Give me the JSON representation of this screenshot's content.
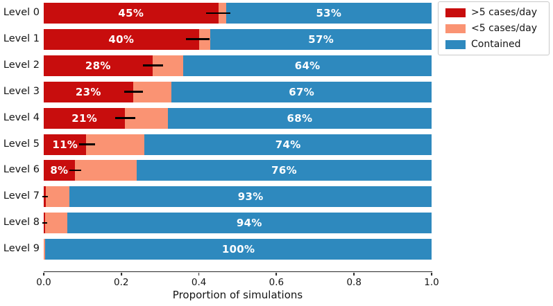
{
  "chart_data": {
    "type": "bar",
    "orientation": "horizontal",
    "stacked": true,
    "title": "",
    "xlabel": "Proportion of simulations",
    "ylabel": "",
    "xlim": [
      0.0,
      1.0
    ],
    "x_ticks": [
      "0.0",
      "0.2",
      "0.4",
      "0.6",
      "0.8",
      "1.0"
    ],
    "grid": false,
    "categories": [
      "Level 0",
      "Level 1",
      "Level 2",
      "Level 3",
      "Level 4",
      "Level 5",
      "Level 6",
      "Level 7",
      "Level 8",
      "Level 9"
    ],
    "series": [
      {
        "name": ">5 cases/day",
        "color": "#c80d0d",
        "values": [
          0.45,
          0.4,
          0.28,
          0.23,
          0.21,
          0.11,
          0.08,
          0.005,
          0.004,
          0.0
        ]
      },
      {
        "name": "<5 cases/day",
        "color": "#fa9373",
        "values": [
          0.02,
          0.03,
          0.08,
          0.1,
          0.11,
          0.15,
          0.16,
          0.062,
          0.056,
          0.004
        ]
      },
      {
        "name": "Contained",
        "color": "#2e89be",
        "values": [
          0.53,
          0.57,
          0.64,
          0.67,
          0.68,
          0.74,
          0.76,
          0.933,
          0.94,
          0.996
        ]
      }
    ],
    "segment_labels": {
      "first": [
        "45%",
        "40%",
        "28%",
        "23%",
        "21%",
        "11%",
        "8%",
        "",
        "",
        ""
      ],
      "last": [
        "53%",
        "57%",
        "64%",
        "67%",
        "68%",
        "74%",
        "76%",
        "93%",
        "94%",
        "100%"
      ]
    },
    "error_bars": [
      [
        0.418,
        0.482
      ],
      [
        0.366,
        0.428
      ],
      [
        0.255,
        0.308
      ],
      [
        0.207,
        0.256
      ],
      [
        0.185,
        0.236
      ],
      [
        0.092,
        0.133
      ],
      [
        0.066,
        0.096
      ],
      [
        -0.004,
        0.01
      ],
      [
        -0.004,
        0.009
      ],
      null
    ],
    "legend": {
      "position": "upper right",
      "entries": [
        ">5 cases/day",
        "<5 cases/day",
        "Contained"
      ]
    }
  },
  "style": {
    "bar_label_color": "#ffffff",
    "axis_color": "#262626",
    "text_color": "#141414",
    "legend_border": "#c9c9c9",
    "background": "#ffffff"
  }
}
